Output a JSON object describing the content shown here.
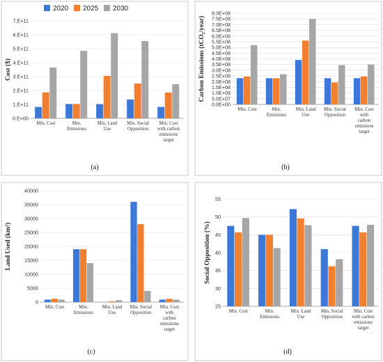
{
  "legend": [
    {
      "label": "2020",
      "color": "#3b78d8"
    },
    {
      "label": "2025",
      "color": "#f07f2f"
    },
    {
      "label": "2030",
      "color": "#a6a6a6"
    }
  ],
  "chart_data": [
    {
      "type": "bar",
      "panel_label": "(a)",
      "ylabel": "Cost ($)",
      "categories": [
        [
          "Min. Cost"
        ],
        [
          "Min.",
          "Emissions"
        ],
        [
          "Min. Land",
          "Use"
        ],
        [
          "Min. Social",
          "Opposition"
        ],
        [
          "Min. Cost",
          "with carbon",
          "emissions",
          "target"
        ]
      ],
      "ylim": [
        0,
        700000000000.0
      ],
      "yticks": [
        0,
        100000000000.0,
        200000000000.0,
        300000000000.0,
        400000000000.0,
        500000000000.0,
        600000000000.0,
        700000000000.0
      ],
      "ytick_labels": [
        "0.E+00",
        "1.E+11",
        "2.E+11",
        "3.E+11",
        "4.E+11",
        "5.E+11",
        "6.E+11",
        "7.E+11"
      ],
      "series": [
        {
          "name": "2020",
          "values": [
            82000000000.0,
            103000000000.0,
            102000000000.0,
            135000000000.0,
            82000000000.0
          ]
        },
        {
          "name": "2025",
          "values": [
            186000000000.0,
            103000000000.0,
            305000000000.0,
            250000000000.0,
            186000000000.0
          ]
        },
        {
          "name": "2030",
          "values": [
            365000000000.0,
            485000000000.0,
            612000000000.0,
            555000000000.0,
            245000000000.0
          ]
        }
      ]
    },
    {
      "type": "bar",
      "panel_label": "(b)",
      "ylabel": "Carbon Emissions (tCO₂/year)",
      "categories": [
        [
          "Min. Cost"
        ],
        [
          "Min.",
          "Emissions"
        ],
        [
          "Min. Land",
          "Use"
        ],
        [
          "Min. Social",
          "Opposition"
        ],
        [
          "Min. Cost",
          "with",
          "carbon",
          "emissions",
          "target"
        ]
      ],
      "ylim": [
        0,
        800000000.0
      ],
      "yticks": [
        0,
        50000000.0,
        100000000.0,
        150000000.0,
        200000000.0,
        250000000.0,
        300000000.0,
        350000000.0,
        400000000.0,
        450000000.0,
        500000000.0,
        550000000.0,
        600000000.0,
        650000000.0,
        700000000.0,
        750000000.0,
        800000000.0
      ],
      "ytick_labels": [
        "0.0E+00",
        "5.0E+07",
        "1.0E+08",
        "1.5E+08",
        "2.0E+08",
        "2.5E+08",
        "3.0E+08",
        "3.5E+08",
        "4.0E+08",
        "4.5E+08",
        "5.0E+08",
        "5.5E+08",
        "6.0E+08",
        "6.5E+08",
        "7.0E+08",
        "7.5E+08",
        "8.0E+08"
      ],
      "series": [
        {
          "name": "2020",
          "values": [
            230000000.0,
            230000000.0,
            390000000.0,
            230000000.0,
            230000000.0
          ]
        },
        {
          "name": "2025",
          "values": [
            245000000.0,
            230000000.0,
            560000000.0,
            193000000.0,
            245000000.0
          ]
        },
        {
          "name": "2030",
          "values": [
            520000000.0,
            265000000.0,
            750000000.0,
            345000000.0,
            350000000.0
          ]
        }
      ]
    },
    {
      "type": "bar",
      "panel_label": "(c)",
      "ylabel": "Land Used (km²)",
      "categories": [
        [
          "Min. Cost"
        ],
        [
          "Min.",
          "Emissions"
        ],
        [
          "Min. Land",
          "Use"
        ],
        [
          "Min. Social",
          "Opposition"
        ],
        [
          "Min. Cost",
          "with",
          "carbon",
          "emissions",
          "target"
        ]
      ],
      "ylim": [
        0,
        40000
      ],
      "yticks": [
        0,
        5000,
        10000,
        15000,
        20000,
        25000,
        30000,
        35000,
        40000
      ],
      "ytick_labels": [
        "0",
        "5000",
        "10000",
        "15000",
        "20000",
        "25000",
        "30000",
        "35000",
        "40000"
      ],
      "series": [
        {
          "name": "2020",
          "values": [
            900,
            19000,
            50,
            36000,
            900
          ]
        },
        {
          "name": "2025",
          "values": [
            1200,
            19000,
            300,
            28000,
            1200
          ]
        },
        {
          "name": "2030",
          "values": [
            900,
            14000,
            700,
            4000,
            900
          ]
        }
      ]
    },
    {
      "type": "bar",
      "panel_label": "(d)",
      "ylabel": "Social Opposition (%)",
      "categories": [
        [
          "Min. Cost"
        ],
        [
          "Min.",
          "Emissions"
        ],
        [
          "Min. Land",
          "Use"
        ],
        [
          "Min. Social",
          "Opposition"
        ],
        [
          "Min. Cost",
          "with carbon",
          "emissions",
          "target"
        ]
      ],
      "ylim": [
        25,
        55
      ],
      "yticks": [
        25,
        30,
        35,
        40,
        45,
        50,
        55
      ],
      "ytick_labels": [
        "25",
        "30",
        "35",
        "40",
        "45",
        "50",
        "55"
      ],
      "series": [
        {
          "name": "2020",
          "values": [
            47.5,
            45.0,
            52.2,
            41.0,
            47.5
          ]
        },
        {
          "name": "2025",
          "values": [
            45.7,
            45.0,
            49.6,
            36.2,
            45.7
          ]
        },
        {
          "name": "2030",
          "values": [
            49.7,
            41.3,
            47.7,
            38.2,
            47.8
          ]
        }
      ]
    }
  ]
}
